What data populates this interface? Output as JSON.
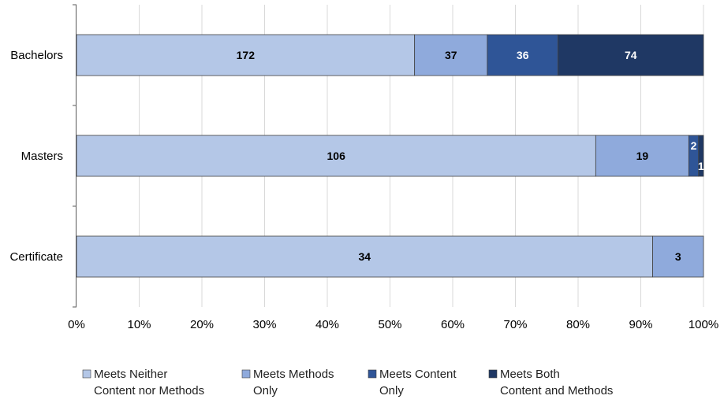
{
  "chart_data": {
    "type": "bar",
    "orientation": "horizontal",
    "stacking": "percent",
    "categories": [
      "Bachelors",
      "Masters",
      "Certificate"
    ],
    "series": [
      {
        "name": "Meets Neither Content nor Methods",
        "legend_lines": [
          "Meets Neither",
          "Content nor Methods"
        ],
        "values": [
          172,
          106,
          34
        ],
        "color": "#b4c7e7",
        "label_color": "#000000"
      },
      {
        "name": "Meets Methods Only",
        "legend_lines": [
          "Meets Methods",
          "Only"
        ],
        "values": [
          37,
          19,
          3
        ],
        "color": "#8faadc",
        "label_color": "#000000"
      },
      {
        "name": "Meets Content Only",
        "legend_lines": [
          "Meets Content",
          "Only"
        ],
        "values": [
          36,
          2,
          0
        ],
        "color": "#2f5597",
        "label_color": "#ffffff"
      },
      {
        "name": "Meets Both Content and Methods",
        "legend_lines": [
          "Meets Both",
          "Content and Methods"
        ],
        "values": [
          74,
          1,
          0
        ],
        "color": "#1f3864",
        "label_color": "#ffffff"
      }
    ],
    "x_ticks": [
      "0%",
      "10%",
      "20%",
      "30%",
      "40%",
      "50%",
      "60%",
      "70%",
      "80%",
      "90%",
      "100%"
    ],
    "xlim": [
      0,
      100
    ],
    "grid": true,
    "legend_position": "bottom",
    "title": "",
    "xlabel": "",
    "ylabel": ""
  }
}
